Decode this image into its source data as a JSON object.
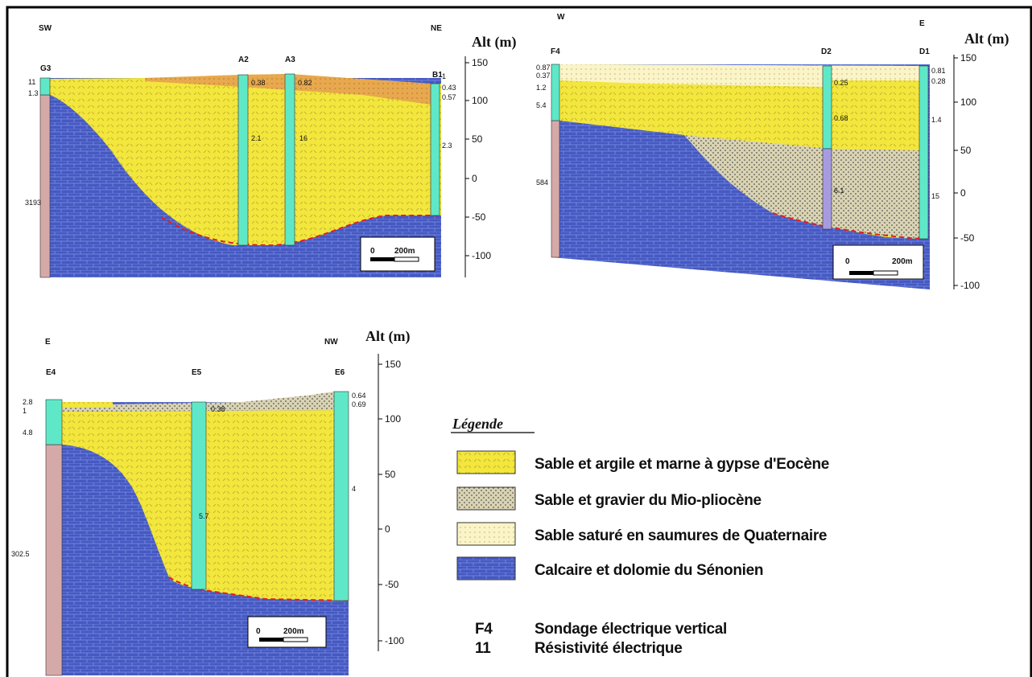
{
  "panels": [
    {
      "direction_left": "SW",
      "direction_right": "NE",
      "axis_title": "Alt (m)",
      "axis_ticks": [
        "150",
        "100",
        "50",
        "0",
        "-50",
        "-100"
      ],
      "wells": [
        "G3",
        "A2",
        "A3",
        "B1"
      ],
      "resistivities": [
        "11",
        "1.3",
        "3193",
        "0.38",
        "0.82",
        "2.1",
        "16",
        "1",
        "0.43",
        "0.57",
        "2.3"
      ],
      "scale": {
        "start": "0",
        "end": "200m"
      }
    },
    {
      "direction_left": "W",
      "direction_right": "E",
      "axis_title": "Alt (m)",
      "axis_ticks": [
        "150",
        "100",
        "50",
        "0",
        "-50",
        "-100"
      ],
      "wells": [
        "F4",
        "D2",
        "D1"
      ],
      "resistivities": [
        "0.87",
        "0.37",
        "1.2",
        "5.4",
        "584",
        "0.25",
        "0.68",
        "6.1",
        "0.81",
        "0.28",
        "1.4",
        "15"
      ],
      "scale": {
        "start": "0",
        "end": "200m"
      }
    },
    {
      "direction_left": "E",
      "direction_right": "NW",
      "axis_title": "Alt (m)",
      "axis_ticks": [
        "150",
        "100",
        "50",
        "0",
        "-50",
        "-100"
      ],
      "wells": [
        "E4",
        "E5",
        "E6"
      ],
      "resistivities": [
        "2.8",
        "1",
        "4.8",
        "302.5",
        "0.38",
        "5.7",
        "0.64",
        "0.69",
        "4"
      ],
      "scale": {
        "start": "0",
        "end": "200m"
      }
    }
  ],
  "legend": {
    "title": "Légende",
    "items": [
      "Sable et argile et marne à gypse d'Eocène",
      "Sable et gravier du Mio-pliocène",
      "Sable saturé en saumures de Quaternaire",
      "Calcaire et dolomie du Sénonien"
    ],
    "symbols": [
      {
        "symbol": "F4",
        "label": "Sondage électrique vertical"
      },
      {
        "symbol": "11",
        "label": "Résistivité électrique"
      }
    ]
  }
}
